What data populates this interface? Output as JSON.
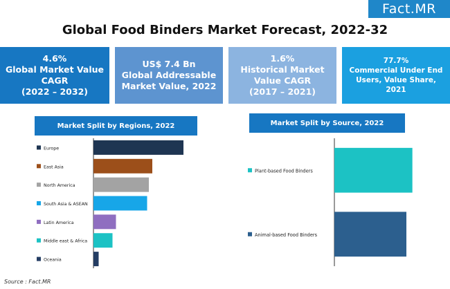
{
  "logo": {
    "text_main": "Fact",
    "text_dot": ".",
    "text_end": "MR"
  },
  "title": "Global Food Binders Market Forecast, 2022-32",
  "kpis": [
    {
      "value": "4.6%",
      "label": "Global Market Value\nCAGR\n(2022 – 2032)",
      "color": "#1777c2"
    },
    {
      "value": "US$ 7.4 Bn",
      "label": "Global Addressable\nMarket Value, 2022",
      "color": "#5d94d0"
    },
    {
      "value": "1.6%",
      "label": "Historical Market\nValue CAGR\n(2017 – 2021)",
      "color": "#8cb4e0"
    },
    {
      "value": "77.7%",
      "label": "Commercial Under End\nUsers, Value Share, 2021",
      "color": "#1ba0e0"
    }
  ],
  "panels": {
    "left_title": "Market Split by Regions, 2022",
    "right_title": "Market Split by Source, 2022",
    "header_color": "#1777c2"
  },
  "chart_data": [
    {
      "type": "bar",
      "orientation": "horizontal",
      "title": "Market Split by Regions, 2022",
      "categories": [
        "Europe",
        "East Asia",
        "North America",
        "South Asia & ASEAN",
        "Latin America",
        "Middle east & Africa",
        "Oceania"
      ],
      "values": [
        26,
        17,
        16,
        15.5,
        6.5,
        5.5,
        1.5
      ],
      "colors": [
        "#1e3552",
        "#9c4f1a",
        "#a3a3a3",
        "#17a6e8",
        "#8f6ec0",
        "#1cc2c4",
        "#243d63"
      ],
      "xlim": [
        0,
        30
      ],
      "grid": false,
      "legend": "left"
    },
    {
      "type": "bar",
      "orientation": "horizontal",
      "title": "Market Split by Source, 2022",
      "categories": [
        "Plant-based Food Binders",
        "Animal-based Food Binders"
      ],
      "values": [
        52,
        48
      ],
      "colors": [
        "#1cc2c4",
        "#2c5f8e"
      ],
      "xlim": [
        0,
        60
      ],
      "grid": false,
      "legend": "left"
    }
  ],
  "source": "Source : Fact.MR"
}
